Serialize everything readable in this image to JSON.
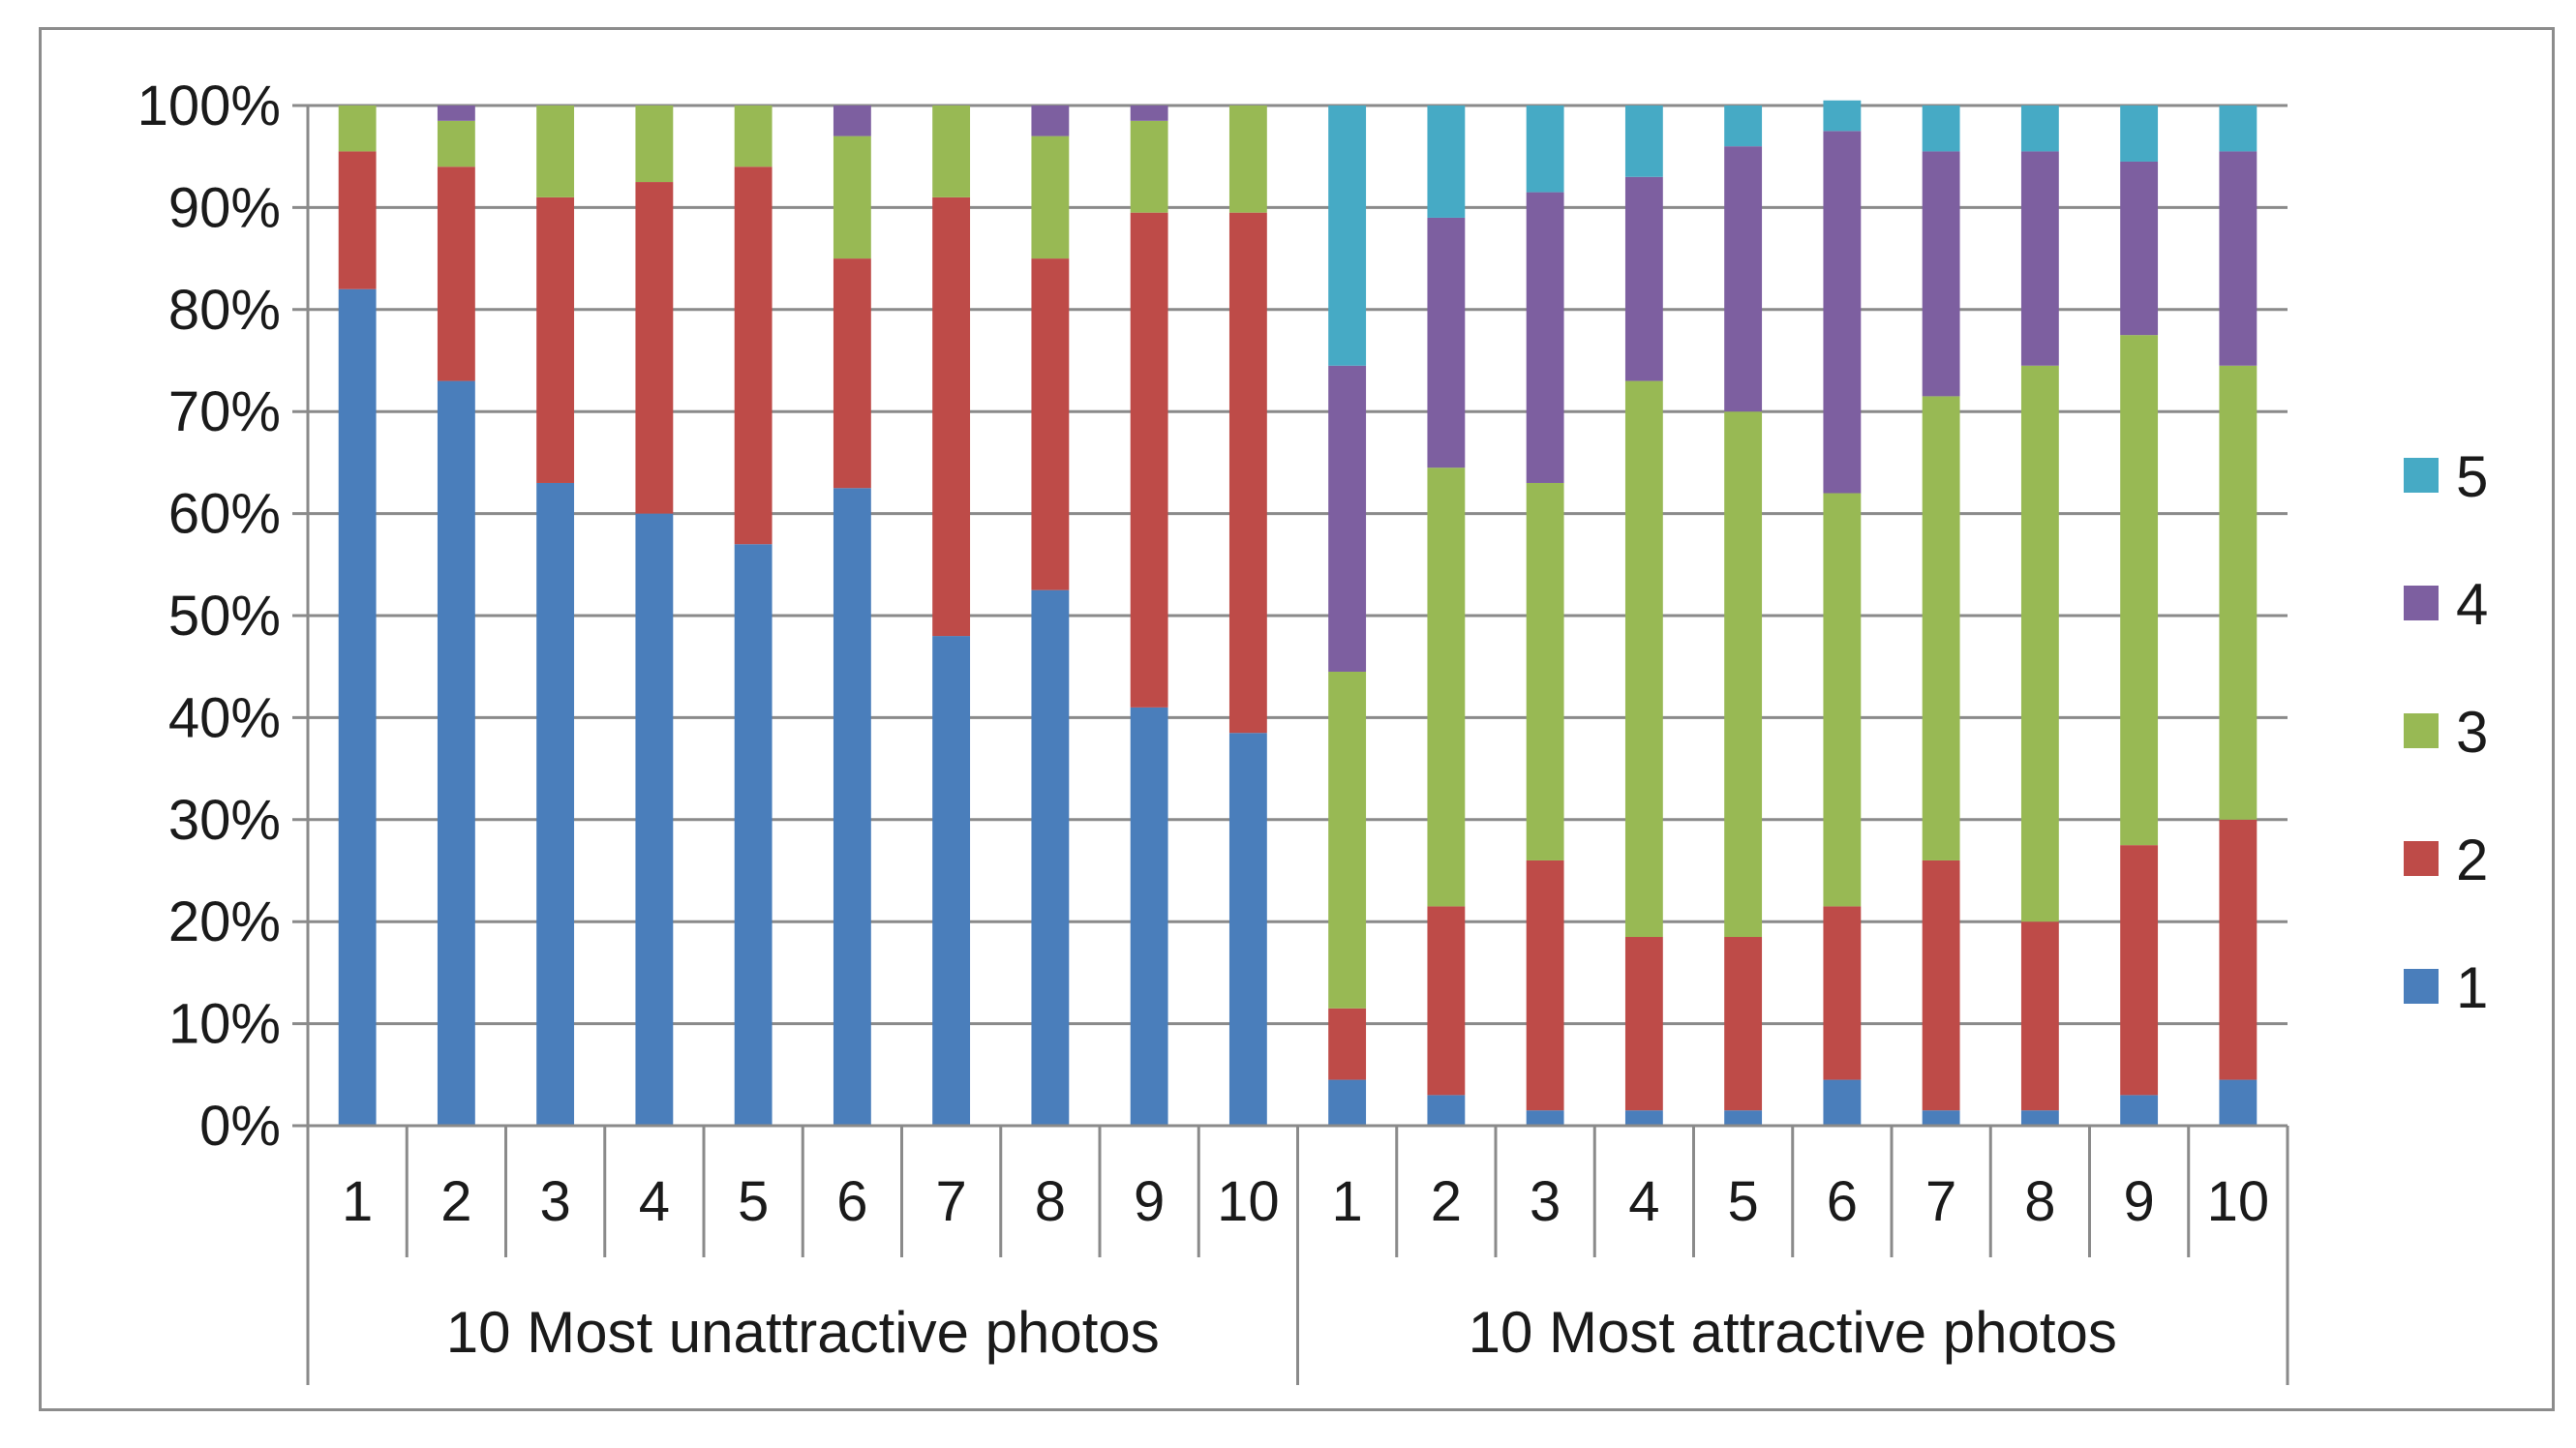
{
  "chart_data": {
    "type": "bar",
    "stacked": true,
    "title": "",
    "xlabel": "",
    "ylabel": "",
    "ylim": [
      0,
      100
    ],
    "y_ticks": [
      "0%",
      "10%",
      "20%",
      "30%",
      "40%",
      "50%",
      "60%",
      "70%",
      "80%",
      "90%",
      "100%"
    ],
    "grid": true,
    "legend_position": "right",
    "groups": [
      {
        "label": "10 Most unattractive photos",
        "categories": [
          "1",
          "2",
          "3",
          "4",
          "5",
          "6",
          "7",
          "8",
          "9",
          "10"
        ]
      },
      {
        "label": "10 Most attractive photos",
        "categories": [
          "1",
          "2",
          "3",
          "4",
          "5",
          "6",
          "7",
          "8",
          "9",
          "10"
        ]
      }
    ],
    "series": [
      {
        "name": "1",
        "color": "#4A7EBB",
        "values": [
          82,
          73,
          63,
          60,
          57,
          62.5,
          48,
          52.5,
          41,
          38.5,
          4.5,
          3,
          1.5,
          1.5,
          1.5,
          4.5,
          1.5,
          1.5,
          3,
          4.5
        ]
      },
      {
        "name": "2",
        "color": "#BE4B48",
        "values": [
          13.5,
          21,
          28,
          32.5,
          37,
          22.5,
          43,
          32.5,
          48.5,
          51,
          7,
          18.5,
          24.5,
          17,
          17,
          17,
          24.5,
          18.5,
          24.5,
          25.5
        ]
      },
      {
        "name": "3",
        "color": "#98B954",
        "values": [
          4.5,
          4.5,
          9,
          7.5,
          6,
          12,
          9,
          12,
          9,
          10.5,
          33,
          43,
          37,
          54.5,
          51.5,
          40.5,
          45.5,
          54.5,
          50,
          44.5
        ]
      },
      {
        "name": "4",
        "color": "#7D5FA0",
        "values": [
          0,
          1.5,
          0,
          0,
          0,
          3,
          0,
          3,
          1.5,
          0,
          30,
          24.5,
          28.5,
          20,
          26,
          35.5,
          24,
          21,
          17,
          21
        ]
      },
      {
        "name": "5",
        "color": "#46AAC5",
        "values": [
          0,
          0,
          0,
          0,
          0,
          0,
          0,
          0,
          0,
          0,
          25.5,
          11,
          8.5,
          7,
          4,
          3,
          4.5,
          4.5,
          5.5,
          4.5
        ]
      }
    ]
  }
}
